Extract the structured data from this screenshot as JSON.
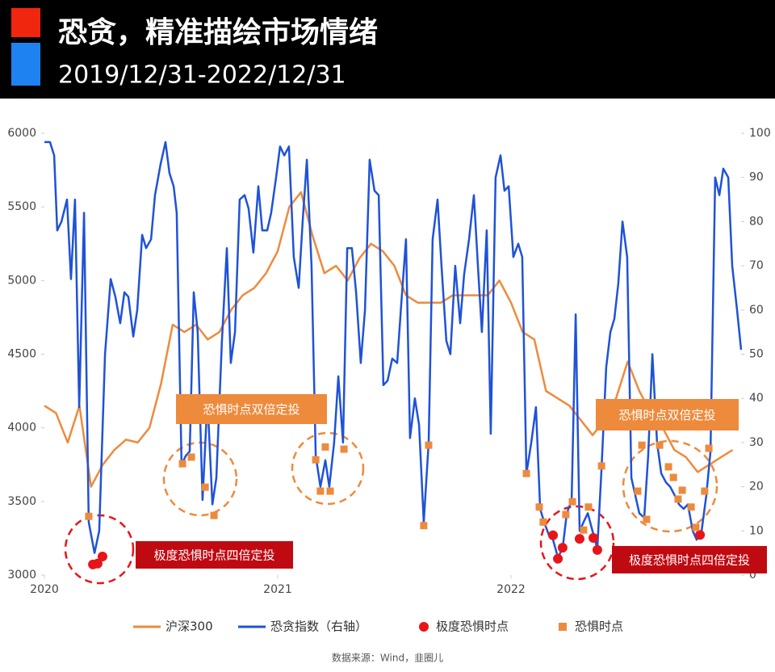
{
  "chart_data": {
    "type": "combo",
    "title": "恐贪，精准描绘市场情绪",
    "subtitle": "2019/12/31-2022/12/31",
    "source": "数据来源：Wind，韭圈儿",
    "xlim": [
      2020,
      2023
    ],
    "xticks": [
      2020,
      2021,
      2022
    ],
    "ylim": [
      3000,
      6000
    ],
    "yticks": [
      3000,
      3500,
      4000,
      4500,
      5000,
      5500,
      6000
    ],
    "y2lim": [
      0,
      100
    ],
    "y2ticks": [
      0,
      10,
      20,
      30,
      40,
      50,
      60,
      70,
      80,
      90,
      100
    ],
    "grid": false,
    "annotations": [
      {
        "text": "恐惧时点双倍定投",
        "color": "#ee8a3c"
      },
      {
        "text": "恐惧时点双倍定投",
        "color": "#ee8a3c"
      },
      {
        "text": "极度恐惧时点四倍定投",
        "color": "#c00a12"
      },
      {
        "text": "极度恐惧时点四倍定投",
        "color": "#c00a12"
      }
    ],
    "series": [
      {
        "name": "沪深300",
        "type": "line",
        "axis": "y",
        "color": "#ee8a3c",
        "x": [
          2020,
          2020.05,
          2020.1,
          2020.15,
          2020.2,
          2020.25,
          2020.3,
          2020.35,
          2020.4,
          2020.45,
          2020.5,
          2020.55,
          2020.6,
          2020.65,
          2020.7,
          2020.75,
          2020.8,
          2020.85,
          2020.9,
          2020.95,
          2021,
          2021.05,
          2021.1,
          2021.15,
          2021.2,
          2021.25,
          2021.3,
          2021.35,
          2021.4,
          2021.45,
          2021.5,
          2021.55,
          2021.6,
          2021.65,
          2021.7,
          2021.75,
          2021.8,
          2021.85,
          2021.9,
          2021.95,
          2022,
          2022.05,
          2022.1,
          2022.15,
          2022.2,
          2022.25,
          2022.3,
          2022.35,
          2022.4,
          2022.45,
          2022.5,
          2022.55,
          2022.6,
          2022.65,
          2022.7,
          2022.75,
          2022.8,
          2022.85,
          2022.9,
          2022.95
        ],
        "values": [
          4150,
          4100,
          3900,
          4150,
          3600,
          3750,
          3850,
          3920,
          3900,
          4000,
          4300,
          4700,
          4650,
          4700,
          4600,
          4650,
          4800,
          4900,
          4950,
          5050,
          5200,
          5500,
          5600,
          5300,
          5050,
          5100,
          5000,
          5150,
          5250,
          5200,
          5100,
          4900,
          4850,
          4850,
          4850,
          4900,
          4900,
          4900,
          4900,
          5000,
          4850,
          4650,
          4600,
          4250,
          4200,
          4150,
          4050,
          3950,
          4050,
          4200,
          4450,
          4250,
          4100,
          4000,
          3850,
          3800,
          3700,
          3750,
          3800,
          3850
        ]
      },
      {
        "name": "恐贪指数（右轴）",
        "type": "line",
        "axis": "y2",
        "color": "#1f52d8",
        "x": [
          2020,
          2020.024,
          2020.042,
          2020.055,
          2020.073,
          2020.097,
          2020.114,
          2020.131,
          2020.149,
          2020.17,
          2020.19,
          2020.215,
          2020.235,
          2020.26,
          2020.284,
          2020.304,
          2020.325,
          2020.343,
          2020.36,
          2020.381,
          2020.398,
          2020.419,
          2020.436,
          2020.457,
          2020.474,
          2020.498,
          2020.519,
          2020.536,
          2020.554,
          2020.567,
          2020.588,
          2020.606,
          2020.623,
          2020.64,
          2020.657,
          2020.678,
          2020.699,
          2020.72,
          2020.737,
          2020.761,
          2020.782,
          2020.799,
          2020.817,
          2020.837,
          2020.858,
          2020.875,
          2020.896,
          2020.917,
          2020.934,
          2020.955,
          2020.972,
          2020.993,
          2021.01,
          2021.028,
          2021.048,
          2021.069,
          2021.09,
          2021.107,
          2021.125,
          2021.145,
          2021.163,
          2021.183,
          2021.204,
          2021.221,
          2021.242,
          2021.26,
          2021.28,
          2021.298,
          2021.318,
          2021.336,
          2021.356,
          2021.374,
          2021.394,
          2021.415,
          2021.433,
          2021.453,
          2021.471,
          2021.491,
          2021.512,
          2021.529,
          2021.55,
          2021.567,
          2021.588,
          2021.606,
          2021.626,
          2021.647,
          2021.664,
          2021.685,
          2021.702,
          2021.723,
          2021.74,
          2021.761,
          2021.782,
          2021.799,
          2021.82,
          2021.841,
          2021.858,
          2021.875,
          2021.896,
          2021.913,
          2021.934,
          2021.955,
          2021.972,
          2021.99,
          2022.01,
          2022.031,
          2022.048,
          2022.066,
          2022.087,
          2022.107,
          2022.125,
          2022.142,
          2022.163,
          2022.18,
          2022.201,
          2022.221,
          2022.239,
          2022.26,
          2022.277,
          2022.294,
          2022.311,
          2022.329,
          2022.349,
          2022.37,
          2022.388,
          2022.408,
          2022.426,
          2022.443,
          2022.46,
          2022.478,
          2022.498,
          2022.516,
          2022.533,
          2022.55,
          2022.571,
          2022.588,
          2022.606,
          2022.626,
          2022.644,
          2022.664,
          2022.682,
          2022.702,
          2022.72,
          2022.74,
          2022.758,
          2022.779,
          2022.796,
          2022.817,
          2022.837,
          2022.855,
          2022.875,
          2022.893,
          2022.91,
          2022.931,
          2022.948,
          2022.969,
          2022.986
        ],
        "values": [
          98,
          98,
          95,
          78,
          80,
          85,
          67,
          85,
          38,
          82,
          12,
          5,
          10,
          50,
          67,
          63,
          57,
          64,
          63,
          54,
          60,
          77,
          74,
          76,
          86,
          93,
          98,
          91,
          88,
          82,
          25,
          27,
          28,
          64,
          55,
          17,
          40,
          16,
          22,
          53,
          74,
          48,
          55,
          85,
          86,
          83,
          73,
          88,
          78,
          78,
          82,
          90,
          97,
          95,
          97,
          72,
          65,
          80,
          94,
          70,
          27,
          20,
          26,
          20,
          30,
          45,
          30,
          74,
          74,
          64,
          48,
          60,
          94,
          87,
          86,
          43,
          44,
          49,
          48,
          61,
          76,
          31,
          40,
          34,
          12,
          30,
          76,
          85,
          70,
          53,
          50,
          70,
          57,
          68,
          76,
          86,
          70,
          55,
          78,
          32,
          90,
          95,
          87,
          88,
          72,
          75,
          72,
          23,
          30,
          38,
          15,
          12,
          9,
          8,
          4,
          6,
          14,
          17,
          59,
          10,
          12,
          14,
          10,
          6,
          24,
          47,
          55,
          58,
          66,
          80,
          72,
          22,
          18,
          14,
          13,
          27,
          50,
          30,
          23,
          21,
          20,
          18,
          16,
          15,
          16,
          10,
          8,
          10,
          18,
          28,
          90,
          86,
          92,
          90,
          70,
          60,
          51
        ]
      },
      {
        "name": "极度恐惧时点",
        "type": "dot",
        "axis": "y2",
        "color": "#e8141a",
        "x": [
          2020.208,
          2020.228,
          2020.249,
          2022.18,
          2022.201,
          2022.221,
          2022.294,
          2022.353,
          2022.37,
          2022.81
        ],
        "values": [
          2.4,
          2.6,
          4.2,
          9,
          3.7,
          6.2,
          8.2,
          8.4,
          5.7,
          9.1
        ]
      },
      {
        "name": "恐惧时点",
        "type": "square",
        "axis": "y2",
        "color": "#ee8a3c",
        "x": [
          2020.19,
          2020.592,
          2020.63,
          2020.689,
          2020.727,
          2021.163,
          2021.183,
          2021.204,
          2021.225,
          2021.284,
          2021.626,
          2021.647,
          2022.066,
          2022.121,
          2022.138,
          2022.235,
          2022.263,
          2022.311,
          2022.332,
          2022.388,
          2022.543,
          2022.561,
          2022.581,
          2022.637,
          2022.675,
          2022.696,
          2022.716,
          2022.734,
          2022.772,
          2022.792,
          2022.83,
          2022.848
        ],
        "values": [
          13.3,
          25.2,
          26.7,
          19.9,
          13.5,
          26.1,
          19,
          29,
          19,
          28.5,
          11.2,
          29.4,
          23,
          15.4,
          12,
          13.7,
          16.6,
          10.2,
          15.4,
          24.7,
          19,
          29.4,
          12.6,
          29.4,
          24.5,
          22.1,
          17.2,
          19.2,
          15.4,
          10.8,
          19,
          28.7
        ]
      }
    ]
  }
}
